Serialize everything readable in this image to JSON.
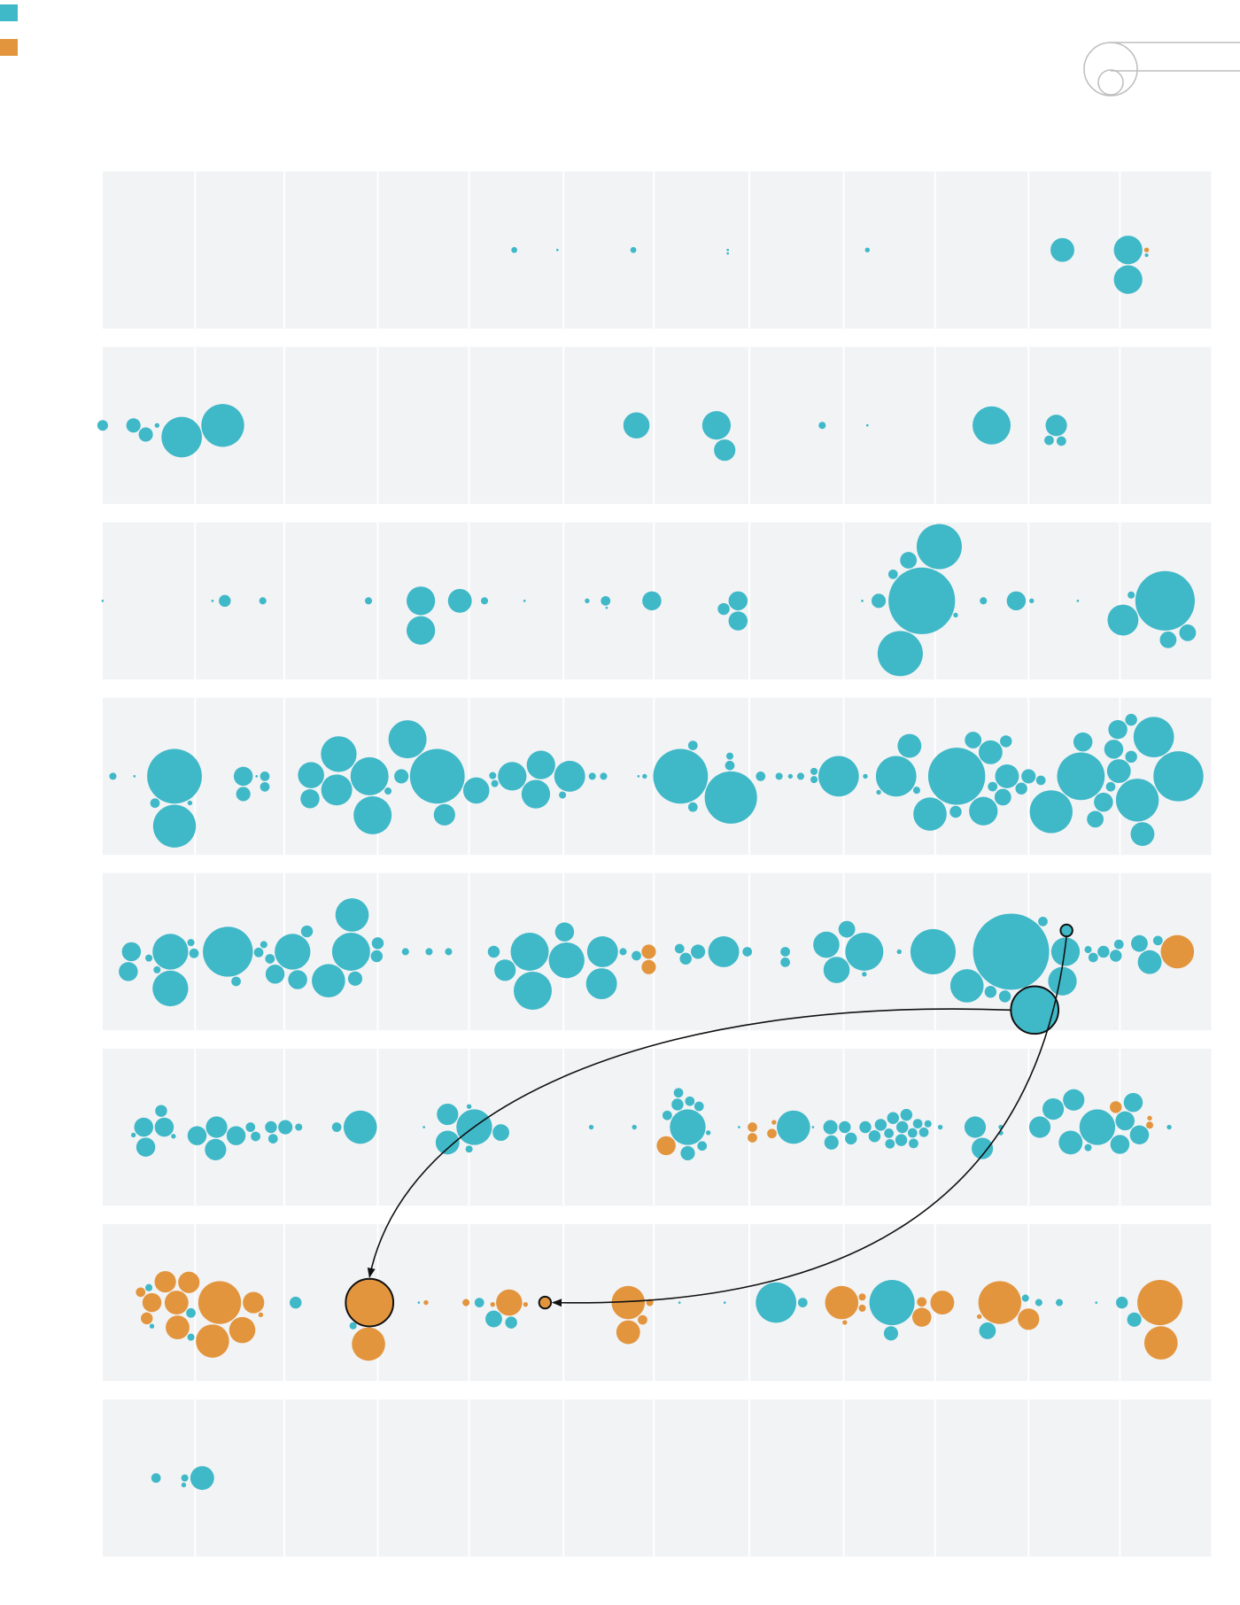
{
  "chart_data": {
    "type": "beeswarm",
    "series": [
      {
        "color": "#3fb8c8"
      },
      {
        "color": "#e3953e"
      }
    ],
    "xlim": [
      0,
      1080
    ],
    "xticks": [
      90,
      177,
      268,
      357,
      449,
      537,
      630,
      722,
      811,
      902,
      991
    ],
    "grid": true,
    "rows": [
      {
        "series": [
          {
            "x": [
              401,
              443,
              517,
              609,
              609,
              745,
              935,
              999,
              999,
              1017
            ],
            "size": [
              2.5,
              1,
              2.5,
              1,
              1,
              2,
              10,
              12,
              12,
              1.5
            ]
          },
          {
            "x": [
              1017
            ],
            "size": [
              2
            ]
          }
        ]
      },
      {
        "series": [
          {
            "x": [
              0,
              30,
              42,
              53,
              77,
              117,
              520,
              598,
              606,
              701,
              745,
              866,
              922,
              934,
              929
            ],
            "size": [
              4.5,
              6,
              6,
              2,
              17,
              18,
              11,
              12,
              9,
              3,
              1,
              16,
              4,
              4,
              9
            ]
          }
        ]
      },
      {
        "series": [
          {
            "x": [
              0,
              107,
              119,
              156,
              259,
              310,
              310,
              348,
              372,
              411,
              472,
              490,
              491,
              535,
              605,
              619,
              619,
              740,
              756,
              777,
              785,
              770,
              815,
              798,
              831,
              858,
              890,
              905,
              950,
              994,
              1002,
              1035,
              1038,
              1057
            ],
            "size": [
              1,
              1,
              5,
              3,
              3,
              12,
              12,
              10,
              3,
              1,
              2,
              4,
              1,
              8,
              5,
              8,
              8,
              1,
              6,
              19,
              7,
              4,
              19,
              28,
              2,
              3,
              8,
              2,
              1,
              13,
              3,
              25,
              7,
              7
            ]
          }
        ]
      },
      {
        "series": [
          {
            "x": [
              10,
              31,
              51,
              70,
              70,
              85,
              137,
              137,
              158,
              158,
              150,
              203,
              202,
              228,
              230,
              260,
              263,
              278,
              291,
              297,
              326,
              333,
              364,
              382,
              380,
              399,
              422,
              427,
              448,
              455,
              477,
              488,
              522,
              528,
              563,
              575,
              575,
              612,
              611,
              611,
              641,
              659,
              670,
              680,
              693,
              693,
              717,
              743,
              756,
              773,
              786,
              793,
              806,
              832,
              831,
              848,
              858,
              865,
              881,
              877,
              880,
              895,
              902,
              867,
              924,
              914,
              953,
              955,
              967,
              975,
              985,
              990,
              989,
              1008,
              1002,
              1024,
              1013,
              1048,
              1002,
              982
            ],
            "size": [
              3,
              1,
              4,
              18,
              23,
              2,
              6,
              8,
              4,
              4,
              1,
              11,
              8,
              13,
              15,
              16,
              16,
              3,
              6,
              16,
              23,
              9,
              11,
              3,
              3,
              12,
              12,
              12,
              3,
              13,
              3,
              3,
              1,
              2,
              23,
              4,
              4,
              22,
              4,
              3,
              4,
              3,
              2,
              3,
              3,
              3,
              17,
              2,
              2,
              17,
              10,
              3,
              14,
              24,
              5,
              7,
              12,
              10,
              10,
              7,
              5,
              5,
              6,
              4,
              18,
              4,
              20,
              8,
              7,
              8,
              8,
              10,
              8,
              18,
              5,
              17,
              10,
              21,
              5,
              4
            ]
          }
        ]
      },
      {
        "series": [
          {
            "x": [
              28,
              25,
              45,
              53,
              66,
              66,
              89,
              86,
              122,
              130,
              152,
              157,
              163,
              168,
              185,
              190,
              199,
              220,
              243,
              242,
              246,
              267,
              268,
              295,
              318,
              337,
              381,
              392,
              416,
              419,
              452,
              450,
              487,
              486,
              507,
              520,
              562,
              568,
              580,
              605,
              628,
              665,
              665,
              715,
              705,
              742,
              725,
              742,
              776,
              809,
              842,
              885,
              865,
              879,
              908,
              916,
              939,
              938,
              935,
              960,
              965,
              975,
              987,
              990,
              1010,
              1020,
              1028
            ],
            "size": [
              8,
              8,
              3,
              3,
              15,
              15,
              4,
              3,
              21,
              4,
              4,
              3,
              4,
              8,
              15,
              8,
              5,
              14,
              14,
              16,
              6,
              5,
              5,
              3,
              3,
              3,
              5,
              9,
              16,
              16,
              15,
              8,
              13,
              13,
              3,
              4,
              4,
              5,
              6,
              13,
              4,
              4,
              4,
              11,
              11,
              16,
              7,
              2,
              2,
              19,
              14,
              32,
              5,
              5,
              20,
              4,
              5,
              12,
              12,
              3,
              4,
              5,
              5,
              4,
              7,
              10,
              4
            ],
            "outline": [
              54,
              56
            ]
          },
          {
            "x": [
              532,
              532,
              1047
            ],
            "size": [
              6,
              6,
              14
            ]
          }
        ]
      },
      {
        "series": [
          {
            "x": [
              40,
              42,
              30,
              57,
              60,
              69,
              92,
              111,
              110,
              130,
              144,
              149,
              164,
              166,
              178,
              191,
              228,
              251,
              313,
              336,
              336,
              357,
              362,
              357,
              388,
              476,
              518,
              561,
              570,
              581,
              550,
              560,
              572,
              584,
              570,
              590,
              620,
              673,
              692,
              709,
              710,
              723,
              729,
              743,
              752,
              758,
              766,
              767,
              779,
              778,
              789,
              790,
              770,
              783,
              794,
              800,
              804,
              816,
              850,
              857,
              875,
              875,
              913,
              926,
              943,
              946,
              960,
              969,
              991,
              996,
              1004,
              1010,
              1039
            ],
            "size": [
              8,
              8,
              2,
              5,
              8,
              2,
              8,
              9,
              9,
              8,
              4,
              4,
              5,
              4,
              6,
              3,
              4,
              14,
              1,
              10,
              9,
              2,
              15,
              3,
              7,
              2,
              2,
              4,
              6,
              4,
              4,
              5,
              4,
              4,
              15,
              2,
              1,
              14,
              1,
              6,
              6,
              5,
              5,
              5,
              5,
              5,
              4,
              4,
              5,
              5,
              4,
              4,
              5,
              5,
              4,
              4,
              3,
              2,
              9,
              9,
              2,
              2,
              9,
              9,
              10,
              9,
              3,
              15,
              8,
              8,
              8,
              8,
              2
            ]
          },
          {
            "x": [
              549,
              633,
              633,
              652,
              654,
              987,
              1020,
              1020
            ],
            "size": [
              8,
              4,
              4,
              4,
              2,
              5,
              3,
              2
            ]
          }
        ]
      },
      {
        "series": [
          {
            "x": [
              48,
              45,
              86,
              86,
              188,
              244,
              308,
              367,
              381,
              398,
              562,
              606,
              656,
              682,
              769,
              768,
              862,
              899,
              912,
              932,
              968,
              993,
              1005
            ],
            "size": [
              2,
              3,
              4,
              3,
              5,
              3,
              1,
              4,
              7,
              5,
              1,
              1,
              17,
              4,
              19,
              6,
              7,
              3,
              3,
              3,
              1,
              5,
              6
            ]
          },
          {
            "x": [
              37,
              48,
              43,
              61,
              72,
              73,
              84,
              107,
              114,
              136,
              147,
              154,
              259,
              260,
              315,
              354,
              396,
              412,
              380,
              431,
              512,
              512,
              526,
              533,
              720,
              723,
              740,
              740,
              798,
              798,
              818,
              874,
              902,
              854,
              1030,
              1031
            ],
            "size": [
              4,
              8,
              5,
              9,
              10,
              10,
              9,
              14,
              18,
              11,
              9,
              2,
              14,
              20,
              2,
              3,
              11,
              2,
              2,
              5,
              14,
              10,
              4,
              3,
              14,
              2,
              3,
              3,
              8,
              4,
              10,
              18,
              9,
              2,
              19,
              14
            ],
            "outline": [
              13,
              19
            ]
          }
        ]
      },
      {
        "series": [
          {
            "x": [
              52,
              79,
              80,
              97
            ],
            "size": [
              4,
              2,
              3,
              10
            ]
          }
        ]
      }
    ]
  }
}
